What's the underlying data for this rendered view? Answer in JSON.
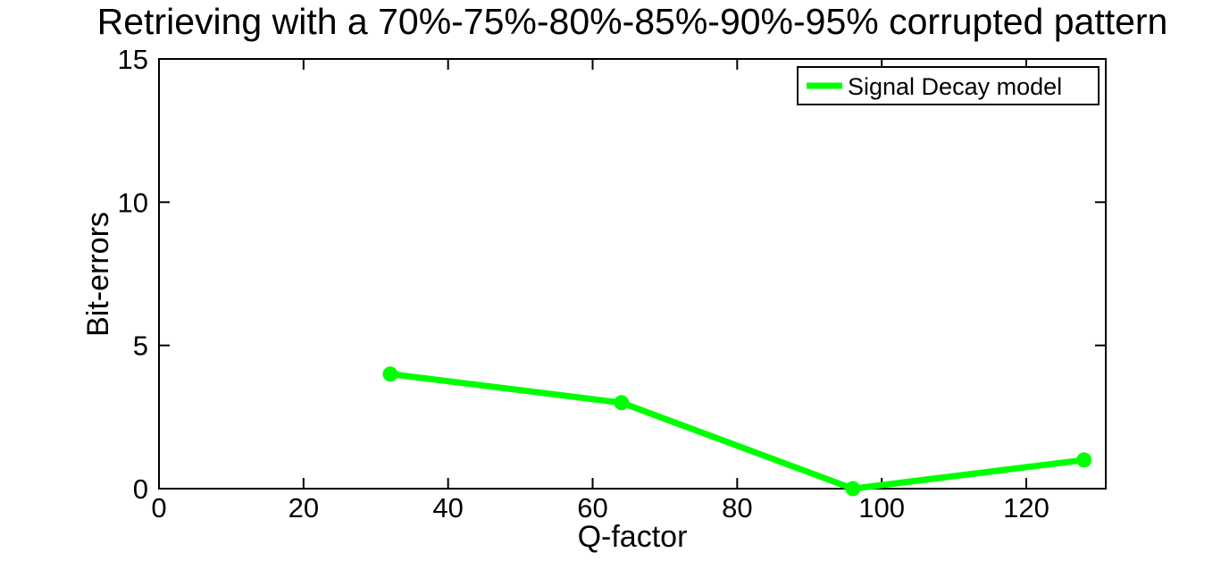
{
  "figure": {
    "background": "#ffffff",
    "axes_color": "#000000",
    "text_color": "#000000"
  },
  "chart_data": {
    "type": "line",
    "title": "Retrieving with a 70%-75%-80%-85%-90%-95% corrupted pattern",
    "xlabel": "Q-factor",
    "ylabel": "Bit-errors",
    "xlim": [
      0,
      131
    ],
    "ylim": [
      0,
      15
    ],
    "xticks": [
      0,
      20,
      40,
      60,
      80,
      100,
      120
    ],
    "yticks": [
      0,
      5,
      10,
      15
    ],
    "grid": false,
    "legend": {
      "position": "top-right",
      "background": "#ffffff",
      "border_color": "#000000"
    },
    "series": [
      {
        "name": "Signal Decay model",
        "color": "#00ff00",
        "marker": "circle",
        "x": [
          32,
          64,
          96,
          128
        ],
        "y": [
          4,
          3,
          0,
          1
        ]
      }
    ]
  }
}
